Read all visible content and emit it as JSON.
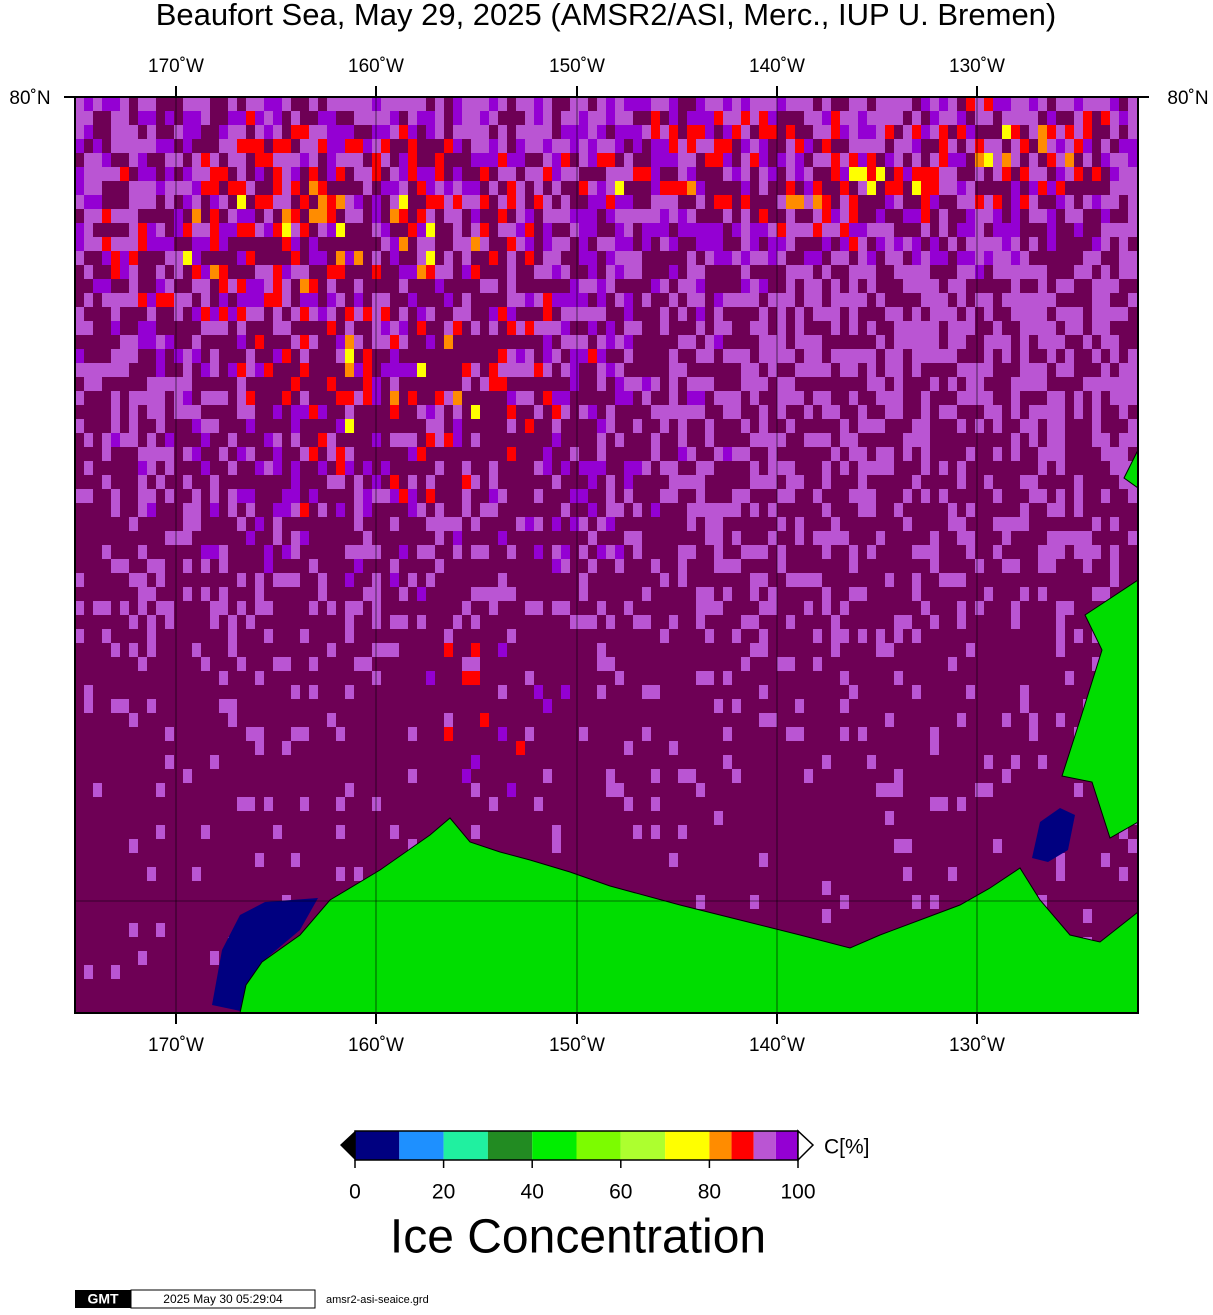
{
  "title": "Beaufort Sea, May 29, 2025 (AMSR2/ASI, Merc., IUP U. Bremen)",
  "map": {
    "lon_labels": [
      "170˚W",
      "160˚W",
      "150˚W",
      "140˚W",
      "130˚W"
    ],
    "lat_label": "80˚N"
  },
  "colorbar": {
    "unit": "C[%]",
    "title": "Ice Concentration",
    "levels": [
      0,
      10,
      20,
      30,
      40,
      50,
      60,
      70,
      80,
      85,
      90,
      95,
      100
    ],
    "colors": [
      "#000080",
      "#1e90ff",
      "#20f0a0",
      "#228b22",
      "#00ee00",
      "#7cfc00",
      "#adff2f",
      "#ffff00",
      "#ff8c00",
      "#ff0000",
      "#ba55d3",
      "#9400d3"
    ],
    "range": [
      0,
      100
    ],
    "ticks": [
      0,
      20,
      40,
      60,
      80,
      100
    ]
  },
  "footer": {
    "logo": "GMT",
    "timestamp": "2025 May 30 05:29:04",
    "file": "amsr2-asi-seaice.grd"
  }
}
